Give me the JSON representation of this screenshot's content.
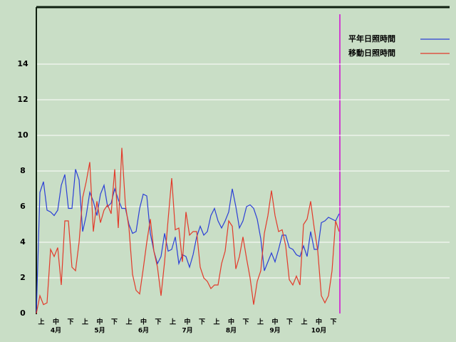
{
  "chart_data": {
    "type": "line",
    "ylim": [
      0,
      17.2
    ],
    "yticks": [
      0,
      2,
      4,
      6,
      8,
      10,
      12,
      14
    ],
    "grid": true,
    "periods": [
      "上",
      "中",
      "下",
      "上",
      "中",
      "下",
      "上",
      "中",
      "下",
      "上",
      "中",
      "下",
      "上",
      "中",
      "下",
      "上",
      "中",
      "下",
      "上",
      "中",
      "下"
    ],
    "months": [
      "4月",
      "5月",
      "6月",
      "7月",
      "8月",
      "9月",
      "10月"
    ],
    "series": [
      {
        "name": "平年日照時間",
        "color": "#2b3fd6",
        "values": [
          0,
          6.8,
          7.4,
          5.8,
          5.7,
          5.5,
          5.8,
          7.2,
          7.8,
          5.9,
          5.9,
          8.1,
          7.5,
          4.6,
          5.5,
          6.8,
          6.3,
          5.5,
          6.7,
          7.2,
          6.0,
          6.2,
          7.0,
          6.4,
          5.9,
          5.9,
          5.0,
          4.5,
          4.6,
          5.9,
          6.7,
          6.6,
          4.5,
          3.5,
          2.8,
          3.2,
          4.5,
          3.5,
          3.6,
          4.3,
          2.8,
          3.3,
          3.2,
          2.6,
          3.3,
          4.3,
          4.9,
          4.4,
          4.6,
          5.5,
          5.9,
          5.2,
          4.8,
          5.2,
          5.7,
          7.0,
          6.0,
          4.8,
          5.2,
          6.0,
          6.1,
          5.9,
          5.3,
          4.2,
          2.4,
          2.9,
          3.4,
          2.9,
          3.6,
          4.4,
          4.4,
          3.7,
          3.6,
          3.3,
          3.2,
          3.8,
          3.2,
          4.6,
          3.6,
          3.6,
          5.1,
          5.2,
          5.4,
          5.3,
          5.2,
          5.6
        ]
      },
      {
        "name": "移動日照時間",
        "color": "#e23a2a",
        "values": [
          0,
          1.0,
          0.5,
          0.6,
          3.6,
          3.2,
          3.7,
          1.6,
          5.2,
          5.2,
          2.6,
          2.4,
          4.0,
          6.5,
          7.4,
          8.5,
          4.6,
          6.3,
          5.1,
          5.8,
          6.1,
          5.6,
          8.1,
          4.8,
          9.3,
          6.1,
          4.8,
          2.2,
          1.3,
          1.1,
          2.5,
          4.0,
          5.3,
          3.5,
          2.6,
          1.0,
          2.9,
          5.3,
          7.6,
          4.7,
          4.8,
          2.9,
          5.7,
          4.4,
          4.6,
          4.6,
          2.6,
          2.0,
          1.8,
          1.4,
          1.6,
          1.6,
          2.8,
          3.5,
          5.2,
          4.9,
          2.5,
          3.2,
          4.3,
          3.1,
          2.0,
          0.5,
          1.8,
          2.4,
          4.5,
          5.5,
          6.9,
          5.5,
          4.6,
          4.7,
          3.8,
          1.9,
          1.6,
          2.1,
          1.6,
          5.0,
          5.3,
          6.3,
          4.8,
          3.5,
          1.0,
          0.6,
          1.0,
          2.4,
          5.2,
          4.6
        ]
      }
    ]
  }
}
